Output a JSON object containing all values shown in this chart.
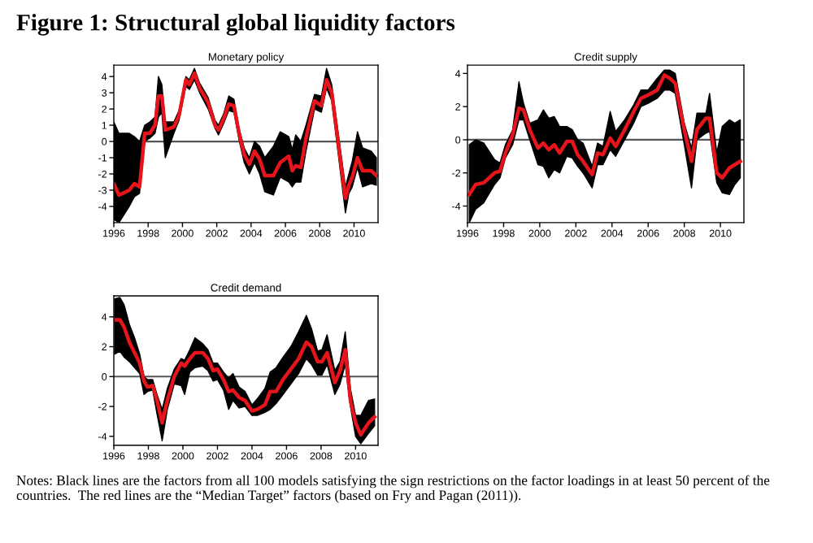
{
  "chart_data": [
    {
      "type": "other",
      "title": "Figure 1: Structural global liquidity factors",
      "annotations": [
        "Notes: Black lines are the factors from all 100 models satisfying the sign restrictions on the factor loadings in at least 50 percent of the countries.  The red lines are the “Median Target” factors (based on Fry and Pagan (2011))."
      ]
    },
    {
      "type": "line",
      "title": "Monetary policy",
      "xlim": [
        1996,
        2011.4
      ],
      "xticks": [
        1996,
        1998,
        2000,
        2002,
        2004,
        2006,
        2008,
        2010
      ],
      "ylim": [
        -5,
        4.7
      ],
      "yticks": [
        -4,
        -3,
        -2,
        -1,
        0,
        1,
        2,
        3,
        4
      ],
      "grid": false,
      "ref_lines": [
        {
          "axis": "y",
          "value": 0,
          "color": "#555555"
        }
      ],
      "series": [
        {
          "color": "#e8141b",
          "x": [
            1996.0,
            1996.3,
            1996.9,
            1997.2,
            1997.5,
            1997.8,
            1998.1,
            1998.4,
            1998.6,
            1998.8,
            1999.0,
            1999.5,
            1999.8,
            2000.2,
            2000.4,
            2000.7,
            2001.0,
            2001.5,
            2001.9,
            2002.1,
            2002.4,
            2002.7,
            2003.0,
            2003.3,
            2003.6,
            2003.9,
            2004.2,
            2004.5,
            2004.8,
            2005.3,
            2005.7,
            2006.2,
            2006.4,
            2006.6,
            2006.9,
            2007.2,
            2007.7,
            2008.1,
            2008.4,
            2008.7,
            2009.5,
            2009.7,
            2009.9,
            2010.2,
            2010.5,
            2011.0,
            2011.3
          ],
          "values": [
            -2.6,
            -3.3,
            -3.0,
            -2.6,
            -2.8,
            0.5,
            0.5,
            1.0,
            2.8,
            2.8,
            0.7,
            0.9,
            1.6,
            3.8,
            3.5,
            4.2,
            3.3,
            2.4,
            1.0,
            0.7,
            1.4,
            2.3,
            2.2,
            0.5,
            -0.8,
            -1.4,
            -0.6,
            -1.1,
            -2.1,
            -2.1,
            -1.3,
            -0.9,
            -1.8,
            -1.5,
            -1.6,
            0.2,
            2.5,
            2.2,
            3.8,
            3.0,
            -3.5,
            -2.7,
            -2.2,
            -1.0,
            -1.8,
            -1.8,
            -2.1
          ],
          "upper": [
            1.2,
            0.5,
            0.5,
            0.3,
            0,
            1.0,
            1.2,
            1.5,
            4.0,
            3.5,
            1.2,
            1.2,
            1.9,
            4.0,
            3.8,
            4.5,
            3.6,
            2.7,
            1.3,
            1.0,
            1.7,
            2.8,
            2.6,
            0.8,
            -0.4,
            -1.0,
            0,
            -0.3,
            -1.0,
            -0.3,
            0.6,
            0.3,
            -0.5,
            0.4,
            0,
            1.0,
            2.9,
            2.8,
            4.5,
            3.5,
            -2.8,
            -2.0,
            -1.2,
            0.6,
            -0.4,
            -0.6,
            -1.0
          ],
          "lower": [
            -4.8,
            -5.0,
            -4.0,
            -3.4,
            -3.2,
            0,
            0.2,
            0.5,
            1.5,
            1.8,
            -1.0,
            0.5,
            1.3,
            3.4,
            3.2,
            3.8,
            3.0,
            2.0,
            0.8,
            0.4,
            1.1,
            1.9,
            1.8,
            0.1,
            -1.3,
            -2.0,
            -1.3,
            -2.0,
            -3.1,
            -3.3,
            -2.2,
            -2.5,
            -2.8,
            -2.5,
            -2.5,
            -0.6,
            2.0,
            1.8,
            3.3,
            2.5,
            -4.4,
            -3.2,
            -2.8,
            -1.6,
            -2.8,
            -2.6,
            -2.7
          ]
        }
      ]
    },
    {
      "type": "line",
      "title": "Credit supply",
      "xlim": [
        1996,
        2011.3
      ],
      "xticks": [
        1996,
        1998,
        2000,
        2002,
        2004,
        2006,
        2008,
        2010
      ],
      "ylim": [
        -5,
        4.5
      ],
      "yticks": [
        -4,
        -2,
        0,
        2,
        4
      ],
      "grid": false,
      "ref_lines": [
        {
          "axis": "y",
          "value": 0,
          "color": "#555555"
        }
      ],
      "series": [
        {
          "color": "#e8141b",
          "x": [
            1996.1,
            1996.45,
            1996.9,
            1997.5,
            1997.8,
            1998.1,
            1998.5,
            1998.85,
            1999.1,
            1999.45,
            1999.9,
            2000.2,
            2000.5,
            2000.8,
            2001.1,
            2001.5,
            2001.8,
            2002.1,
            2002.4,
            2002.9,
            2003.2,
            2003.5,
            2003.9,
            2004.2,
            2004.7,
            2005.2,
            2005.6,
            2006.0,
            2006.5,
            2006.9,
            2007.2,
            2007.5,
            2008.0,
            2008.4,
            2008.7,
            2009.2,
            2009.4,
            2009.8,
            2010.1,
            2010.5,
            2010.8,
            2011.1
          ],
          "values": [
            -3.3,
            -2.7,
            -2.6,
            -2.0,
            -1.9,
            -0.8,
            0.3,
            1.9,
            1.8,
            0.6,
            -0.5,
            -0.2,
            -0.6,
            -0.3,
            -0.8,
            -0.1,
            -0.1,
            -0.9,
            -1.3,
            -2.1,
            -0.8,
            -0.9,
            0.1,
            -0.4,
            0.6,
            1.7,
            2.5,
            2.7,
            3.0,
            3.9,
            3.7,
            3.4,
            0.6,
            -1.3,
            0.6,
            1.3,
            1.3,
            -2.0,
            -2.3,
            -1.7,
            -1.5,
            -1.3
          ],
          "upper": [
            -0.3,
            0.0,
            -0.2,
            -1.2,
            -1.4,
            -0.3,
            0.6,
            3.5,
            2.2,
            1.0,
            1.2,
            1.8,
            1.3,
            1.4,
            0.8,
            0.8,
            0.6,
            0,
            -0.2,
            -1.6,
            -0.2,
            -0.4,
            1.7,
            0.5,
            1.2,
            2.1,
            3.0,
            3.0,
            3.7,
            4.2,
            4.2,
            4.0,
            1.0,
            -0.5,
            1.6,
            1.6,
            2.8,
            -0.8,
            0.8,
            1.2,
            1.0,
            1.2
          ],
          "lower": [
            -5.0,
            -4.2,
            -3.8,
            -2.7,
            -2.3,
            -1.1,
            -0.3,
            1.2,
            1.2,
            0,
            -1.5,
            -1.6,
            -2.3,
            -1.8,
            -2.0,
            -1.0,
            -1.1,
            -1.6,
            -2.0,
            -2.9,
            -1.5,
            -1.5,
            -0.6,
            -1.0,
            0,
            1.0,
            2.0,
            2.2,
            2.5,
            3.0,
            3.0,
            2.8,
            -0.3,
            -2.9,
            0,
            0.4,
            0.5,
            -2.6,
            -3.2,
            -3.3,
            -2.7,
            -2.3
          ]
        }
      ]
    },
    {
      "type": "line",
      "title": "Credit demand",
      "xlim": [
        1996,
        2011.3
      ],
      "xticks": [
        1996,
        1998,
        2000,
        2002,
        2004,
        2006,
        2008,
        2010
      ],
      "ylim": [
        -4.6,
        5.4
      ],
      "yticks": [
        -4,
        -2,
        0,
        2,
        4
      ],
      "grid": false,
      "ref_lines": [
        {
          "axis": "y",
          "value": 0,
          "color": "#555555"
        }
      ],
      "series": [
        {
          "color": "#e8141b",
          "x": [
            1996.05,
            1996.35,
            1996.6,
            1996.9,
            1997.2,
            1997.5,
            1997.75,
            1997.95,
            1998.25,
            1998.5,
            1998.8,
            1999.1,
            1999.5,
            1999.9,
            2000.1,
            2000.4,
            2000.7,
            2001.15,
            2001.45,
            2001.75,
            2002.0,
            2002.35,
            2002.65,
            2002.9,
            2003.25,
            2003.6,
            2004.0,
            2004.3,
            2004.75,
            2005.05,
            2005.4,
            2005.8,
            2006.25,
            2006.7,
            2007.15,
            2007.45,
            2007.8,
            2008.05,
            2008.35,
            2008.8,
            2009.1,
            2009.4,
            2009.7,
            2010.0,
            2010.3,
            2010.75,
            2011.1
          ],
          "values": [
            3.8,
            3.8,
            3.3,
            2.3,
            1.6,
            0.9,
            -0.3,
            -0.7,
            -0.6,
            -1.6,
            -3.1,
            -1.6,
            0,
            0.9,
            0.7,
            1.2,
            1.6,
            1.6,
            1.2,
            0.4,
            0.5,
            -0.2,
            -1.0,
            -0.9,
            -1.4,
            -1.6,
            -2.3,
            -2.2,
            -1.9,
            -1.0,
            -1.0,
            -0.2,
            0.5,
            1.2,
            2.3,
            2.0,
            1.0,
            1.0,
            1.6,
            -0.4,
            0.4,
            1.8,
            -1.6,
            -3.1,
            -3.9,
            -3.1,
            -2.7
          ],
          "upper": [
            5.2,
            5.3,
            4.8,
            3.5,
            2.6,
            1.5,
            0,
            -0.2,
            -0.2,
            -1.2,
            -2.2,
            -0.8,
            0.5,
            1.2,
            1.1,
            1.8,
            2.6,
            2.2,
            1.8,
            0.9,
            0.9,
            0.3,
            -0.1,
            0.2,
            -0.7,
            -1.0,
            -1.9,
            -1.5,
            -0.8,
            0.3,
            0.6,
            1.3,
            2.0,
            3.0,
            4.1,
            3.2,
            1.7,
            1.8,
            2.8,
            0.4,
            1.0,
            3.0,
            -0.8,
            -2.6,
            -2.6,
            -1.6,
            -1.5
          ],
          "lower": [
            1.5,
            1.7,
            1.3,
            1.0,
            0.6,
            0.2,
            -1.2,
            -1.0,
            -0.9,
            -2.5,
            -4.3,
            -2.2,
            -0.5,
            -0.6,
            -1.2,
            0.3,
            0.6,
            0.7,
            0.4,
            -0.3,
            -0.2,
            -0.9,
            -2.2,
            -1.6,
            -2.1,
            -2.0,
            -2.6,
            -2.6,
            -2.4,
            -2.2,
            -1.8,
            -1.2,
            -0.5,
            0.2,
            1.2,
            0.8,
            0.1,
            0.1,
            0.8,
            -1.2,
            -0.5,
            0.8,
            -2.0,
            -4.0,
            -4.5,
            -3.8,
            -3.3
          ]
        }
      ]
    }
  ]
}
